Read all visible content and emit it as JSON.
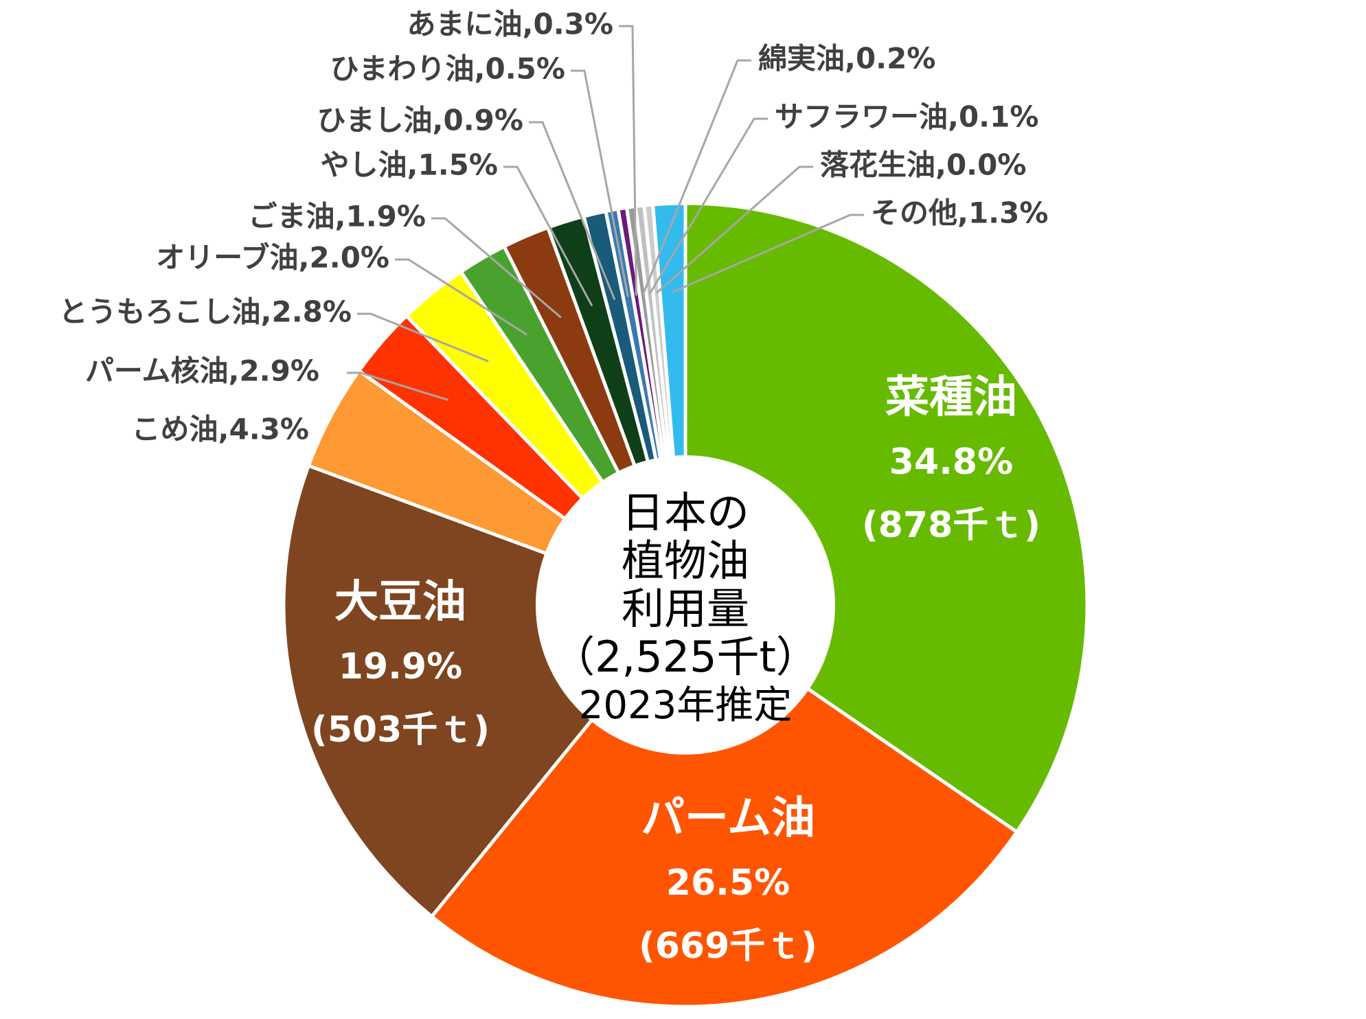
{
  "chart_data": {
    "type": "pie",
    "center_label": [
      "日本の",
      "植物油",
      "利用量",
      "（2,525千t）",
      "2023年推定"
    ],
    "slices": [
      {
        "name": "菜種油",
        "percent_label": "34.8%",
        "amount_label": "(878千ｔ)",
        "value": 34.8,
        "color": "#66bb00"
      },
      {
        "name": "パーム油",
        "percent_label": "26.5%",
        "amount_label": "(669千ｔ)",
        "value": 26.5,
        "color": "#ff5500"
      },
      {
        "name": "大豆油",
        "percent_label": "19.9%",
        "amount_label": "(503千ｔ)",
        "value": 19.9,
        "color": "#7f4520"
      },
      {
        "name": "こめ油",
        "label": "こめ油,4.3%",
        "value": 4.3,
        "color": "#ff9933"
      },
      {
        "name": "パーム核油",
        "label": "パーム核油,2.9%",
        "value": 2.9,
        "color": "#ff3300"
      },
      {
        "name": "とうもろこし油",
        "label": "とうもろこし油,2.8%",
        "value": 2.8,
        "color": "#ffff00"
      },
      {
        "name": "オリーブ油",
        "label": "オリーブ油,2.0%",
        "value": 2.0,
        "color": "#4aa22e"
      },
      {
        "name": "ごま油",
        "label": "ごま油,1.9%",
        "value": 1.9,
        "color": "#8c3a10"
      },
      {
        "name": "やし油",
        "label": "やし油,1.5%",
        "value": 1.5,
        "color": "#0e3f19"
      },
      {
        "name": "ひまし油",
        "label": "ひまし油,0.9%",
        "value": 0.9,
        "color": "#1a5a7a"
      },
      {
        "name": "ひまわり油",
        "label": "ひまわり油,0.5%",
        "value": 0.5,
        "color": "#3a7ab0"
      },
      {
        "name": "あまに油",
        "label": "あまに油,0.3%",
        "value": 0.3,
        "color": "#6a1a7a"
      },
      {
        "name": "綿実油",
        "label": "綿実油,0.2%",
        "value": 0.2,
        "color": "#9a9a9a"
      },
      {
        "name": "サフラワー油",
        "label": "サフラワー油,0.1%",
        "value": 0.1,
        "color": "#c0c0c0"
      },
      {
        "name": "落花生油",
        "label": "落花生油,0.0%",
        "value": 0.0,
        "color": "#cccccc"
      },
      {
        "name": "その他",
        "label": "その他,1.3%",
        "value": 1.3,
        "color": "#33bbee"
      }
    ]
  }
}
